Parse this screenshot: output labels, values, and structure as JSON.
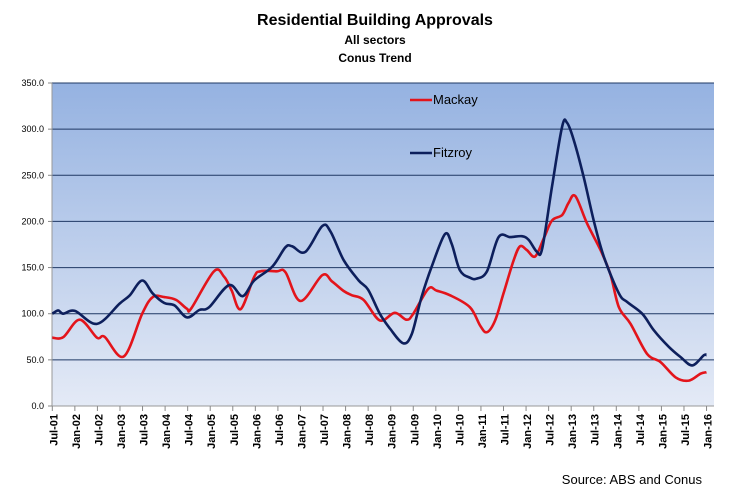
{
  "chart_data": {
    "type": "line",
    "title": "Residential Building Approvals",
    "subtitle": [
      "All sectors",
      "Conus Trend"
    ],
    "xlabel": "",
    "ylabel": "",
    "ylim": [
      0,
      350
    ],
    "y_ticks": [
      "0.0",
      "50.0",
      "100.0",
      "150.0",
      "200.0",
      "250.0",
      "300.0",
      "350.0"
    ],
    "y_tick_values": [
      0,
      50,
      100,
      150,
      200,
      250,
      300,
      350
    ],
    "x_unit": "months since Jul-01",
    "x_tick_labels": [
      "Jul-01",
      "Jan-02",
      "Jul-02",
      "Jan-03",
      "Jul-03",
      "Jan-04",
      "Jul-04",
      "Jan-05",
      "Jul-05",
      "Jan-06",
      "Jul-06",
      "Jan-07",
      "Jul-07",
      "Jan-08",
      "Jul-08",
      "Jan-09",
      "Jul-09",
      "Jan-10",
      "Jul-10",
      "Jan-11",
      "Jul-11",
      "Jan-12",
      "Jul-12",
      "Jan-13",
      "Jul-13",
      "Jan-14",
      "Jul-14",
      "Jan-15",
      "Jul-15",
      "Jan-16"
    ],
    "grid": true,
    "legend_placement": "top-center",
    "source": "Source: ABS and Conus",
    "series": [
      {
        "name": "Mackay",
        "color": "#e3141b",
        "points": [
          [
            0,
            74
          ],
          [
            2.9,
            74.5
          ],
          [
            7.3,
            93.5
          ],
          [
            11.9,
            74
          ],
          [
            13.9,
            75
          ],
          [
            19,
            53.6
          ],
          [
            23.9,
            100
          ],
          [
            26.7,
            118
          ],
          [
            29.8,
            118
          ],
          [
            32.9,
            115
          ],
          [
            35.8,
            105.4
          ],
          [
            37,
            106
          ],
          [
            43,
            146
          ],
          [
            45.7,
            140
          ],
          [
            47.7,
            125
          ],
          [
            50.1,
            105
          ],
          [
            53.7,
            140
          ],
          [
            55.4,
            146
          ],
          [
            59.7,
            146
          ],
          [
            62,
            145
          ],
          [
            66,
            113.8
          ],
          [
            71.8,
            141.7
          ],
          [
            74.4,
            135
          ],
          [
            77.5,
            124.6
          ],
          [
            79.7,
            120
          ],
          [
            82.8,
            115
          ],
          [
            87.1,
            92.8
          ],
          [
            91.1,
            101
          ],
          [
            94.2,
            93.5
          ],
          [
            96,
            100
          ],
          [
            100,
            127
          ],
          [
            102.2,
            125
          ],
          [
            105.8,
            120
          ],
          [
            111.1,
            107
          ],
          [
            113.8,
            87
          ],
          [
            115.6,
            80
          ],
          [
            117.8,
            93
          ],
          [
            120,
            122
          ],
          [
            122.7,
            158
          ],
          [
            124.4,
            173
          ],
          [
            126.2,
            169
          ],
          [
            128.4,
            162
          ],
          [
            130.7,
            181.5
          ],
          [
            132.9,
            201
          ],
          [
            135.6,
            207
          ],
          [
            137.3,
            220
          ],
          [
            139.1,
            227.5
          ],
          [
            142.2,
            198
          ],
          [
            145.8,
            169
          ],
          [
            148.4,
            143
          ],
          [
            150.7,
            107
          ],
          [
            153.8,
            89
          ],
          [
            158.2,
            56.5
          ],
          [
            161.8,
            47.5
          ],
          [
            165.8,
            31
          ],
          [
            169.3,
            27.5
          ],
          [
            172.4,
            35
          ],
          [
            174,
            36.6
          ]
        ]
      },
      {
        "name": "Fitzroy",
        "color": "#0d1f5c",
        "points": [
          [
            0,
            100
          ],
          [
            1.6,
            103.6
          ],
          [
            2.9,
            100
          ],
          [
            6,
            103
          ],
          [
            11.9,
            89
          ],
          [
            17.9,
            111
          ],
          [
            20.6,
            120
          ],
          [
            23.9,
            136
          ],
          [
            26.7,
            122
          ],
          [
            29.8,
            111.6
          ],
          [
            32.5,
            109
          ],
          [
            35.8,
            96
          ],
          [
            39.1,
            104
          ],
          [
            41.7,
            107
          ],
          [
            47,
            131
          ],
          [
            50.6,
            119
          ],
          [
            53.7,
            136
          ],
          [
            58.5,
            151
          ],
          [
            62,
            172
          ],
          [
            63.8,
            173
          ],
          [
            67.3,
            167
          ],
          [
            71.8,
            195
          ],
          [
            74,
            189
          ],
          [
            77.5,
            158
          ],
          [
            81.5,
            136
          ],
          [
            84,
            126
          ],
          [
            87.1,
            100
          ],
          [
            89.8,
            84
          ],
          [
            93.3,
            68
          ],
          [
            95.6,
            78
          ],
          [
            98.2,
            118
          ],
          [
            100.9,
            151
          ],
          [
            104.4,
            186
          ],
          [
            106.2,
            176
          ],
          [
            108.4,
            147
          ],
          [
            111.1,
            139
          ],
          [
            112.9,
            138
          ],
          [
            115.6,
            146
          ],
          [
            118.7,
            183
          ],
          [
            121.8,
            183
          ],
          [
            124.9,
            184
          ],
          [
            126.7,
            180
          ],
          [
            128.9,
            167
          ],
          [
            130.3,
            170.6
          ],
          [
            132.9,
            237.7
          ],
          [
            135.6,
            303
          ],
          [
            136.9,
            307
          ],
          [
            138.7,
            288
          ],
          [
            141.3,
            248.5
          ],
          [
            144,
            201
          ],
          [
            146.7,
            161.6
          ],
          [
            150.7,
            122
          ],
          [
            152.9,
            112.7
          ],
          [
            156.9,
            100
          ],
          [
            160,
            82
          ],
          [
            164,
            64
          ],
          [
            167.1,
            53
          ],
          [
            170.2,
            44
          ],
          [
            173.3,
            55
          ],
          [
            174,
            55
          ]
        ]
      }
    ]
  }
}
